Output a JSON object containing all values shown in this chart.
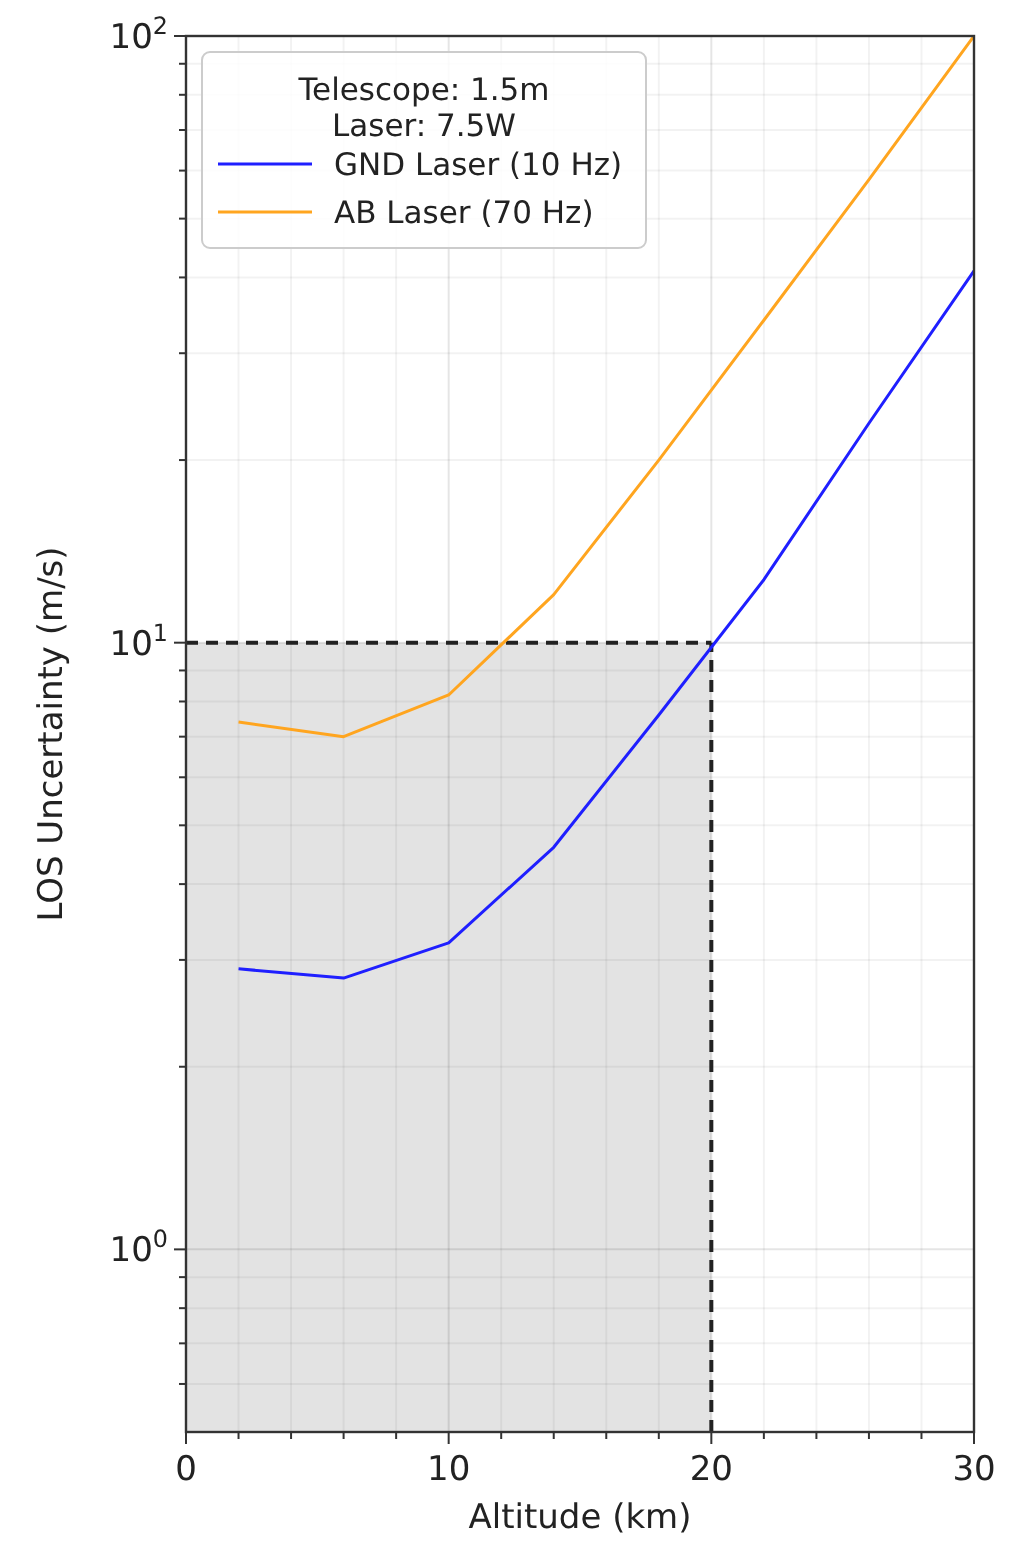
{
  "chart_data": {
    "type": "line",
    "xlabel": "Altitude (km)",
    "ylabel": "LOS Uncertainty (m/s)",
    "legend_title": "Telescope: 1.5m\nLaser: 7.5W",
    "log": "y",
    "grid": true,
    "legend": "top left",
    "line_style": "solid",
    "xlim": [
      0,
      30
    ],
    "ylim": [
      0.5,
      100
    ],
    "xticks": [
      0,
      {
        "value": 2,
        "label": null
      },
      {
        "value": 4,
        "label": null
      },
      {
        "value": 6,
        "label": null
      },
      {
        "value": 8,
        "label": null
      },
      10,
      {
        "value": 12,
        "label": null
      },
      {
        "value": 14,
        "label": null
      },
      {
        "value": 16,
        "label": null
      },
      {
        "value": 18,
        "label": null
      },
      20,
      {
        "value": 22,
        "label": null
      },
      {
        "value": 24,
        "label": null
      },
      {
        "value": 26,
        "label": null
      },
      {
        "value": 28,
        "label": null
      },
      30
    ],
    "yticks": [
      {
        "value": 0.6,
        "label": null
      },
      {
        "value": 0.7,
        "label": null
      },
      {
        "value": 0.8,
        "label": null
      },
      {
        "value": 0.9,
        "label": null
      },
      {
        "value": 1,
        "label": "10$^{0}$"
      },
      {
        "value": 2,
        "label": null
      },
      {
        "value": 3,
        "label": null
      },
      {
        "value": 4,
        "label": null
      },
      {
        "value": 5,
        "label": null
      },
      {
        "value": 6,
        "label": null
      },
      {
        "value": 7,
        "label": null
      },
      {
        "value": 8,
        "label": null
      },
      {
        "value": 9,
        "label": null
      },
      {
        "value": 10,
        "label": "10$^{1}$"
      },
      {
        "value": 20,
        "label": null
      },
      {
        "value": 30,
        "label": null
      },
      {
        "value": 40,
        "label": null
      },
      {
        "value": 50,
        "label": null
      },
      {
        "value": 60,
        "label": null
      },
      {
        "value": 70,
        "label": null
      },
      {
        "value": 80,
        "label": null
      },
      {
        "value": 90,
        "label": null
      },
      {
        "value": 100,
        "label": "10$^{2}$"
      }
    ],
    "x": [
      2,
      6,
      10,
      14,
      18,
      22,
      26,
      30
    ],
    "series": [
      {
        "name": "GND Laser (10 Hz)",
        "color": "#1f1fff",
        "values": [
          2.9,
          2.8,
          3.2,
          4.6,
          7.6,
          12.7,
          23,
          41
        ]
      },
      {
        "name": "AB Laser (70 Hz)",
        "color": "#ffa51f",
        "values": [
          7.4,
          7.0,
          8.2,
          12,
          20,
          34,
          58,
          100
        ]
      }
    ],
    "bands": [
      {
        "axis": "x",
        "from": 0,
        "to": 20,
        "color": "#e3e3e3"
      }
    ],
    "ref_lines": [
      {
        "axis": "y",
        "value": 10,
        "line_style": "dashed",
        "color": "#222222"
      },
      {
        "axis": "x",
        "value": 20,
        "line_style": "dashed",
        "color": "#222222"
      }
    ]
  }
}
